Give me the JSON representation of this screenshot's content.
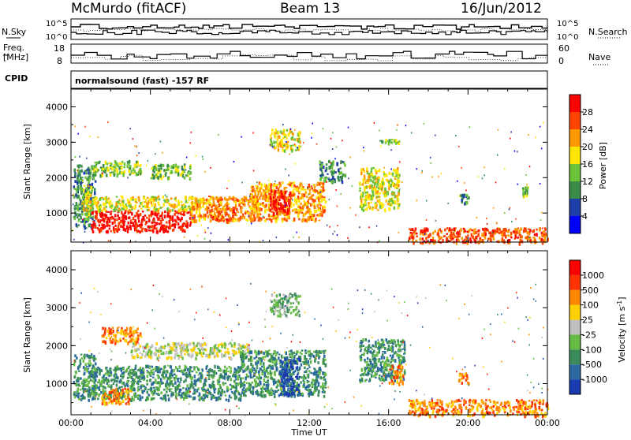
{
  "header": {
    "station": "McMurdo (fitACF)",
    "beam": "Beam 13",
    "date": "16/Jun/2012",
    "cpid_label": "CPID",
    "cpid_text": "normalsound (fast) -157 RF"
  },
  "status_panels": {
    "nsky": {
      "label": "N.Sky",
      "ticks": [
        "10^5",
        "10^0"
      ]
    },
    "nsearch": {
      "label": "N.Search",
      "ticks": [
        "10^5",
        "10^0"
      ]
    },
    "freq": {
      "label_line1": "Freq.",
      "label_line2": "[MHz]",
      "ticks": [
        "18",
        "8"
      ]
    },
    "nave": {
      "label": "Nave",
      "ticks": [
        "60",
        "0"
      ]
    }
  },
  "chart_data": [
    {
      "type": "heatmap",
      "title": "",
      "xlabel": "",
      "ylabel": "Slant Range [km]",
      "xlim": [
        0,
        24
      ],
      "ylim": [
        180,
        4500
      ],
      "yticks": [
        "1000",
        "2000",
        "3000",
        "4000"
      ],
      "colorbar": {
        "label": "Power [dB]",
        "ticks": [
          "28",
          "24",
          "20",
          "16",
          "12",
          "8",
          "4"
        ],
        "colors": [
          "#0000ff",
          "#1e3ea8",
          "#3a8c4a",
          "#6cc33a",
          "#ffe600",
          "#ff9900",
          "#ff4400",
          "#ff0000"
        ]
      },
      "regions": [
        {
          "t0": 0.1,
          "t1": 1.2,
          "r0": 600,
          "r1": 2400,
          "level": 2
        },
        {
          "t0": 0.5,
          "t1": 1.0,
          "r0": 900,
          "r1": 1800,
          "level": 4
        },
        {
          "t0": 1.0,
          "t1": 6.0,
          "r0": 500,
          "r1": 1100,
          "level": 7
        },
        {
          "t0": 1.0,
          "t1": 6.5,
          "r0": 1100,
          "r1": 1500,
          "level": 4
        },
        {
          "t0": 6.0,
          "t1": 9.5,
          "r0": 800,
          "r1": 1500,
          "level": 5
        },
        {
          "t0": 7.0,
          "t1": 8.2,
          "r0": 800,
          "r1": 1200,
          "level": 6
        },
        {
          "t0": 9.0,
          "t1": 12.8,
          "r0": 800,
          "r1": 1900,
          "level": 5
        },
        {
          "t0": 10.0,
          "t1": 11.0,
          "r0": 1000,
          "r1": 1700,
          "level": 7
        },
        {
          "t0": 1.0,
          "t1": 3.5,
          "r0": 2100,
          "r1": 2500,
          "level": 3
        },
        {
          "t0": 4.0,
          "t1": 6.0,
          "r0": 2000,
          "r1": 2400,
          "level": 3
        },
        {
          "t0": 10.0,
          "t1": 11.5,
          "r0": 2800,
          "r1": 3400,
          "level": 4
        },
        {
          "t0": 12.5,
          "t1": 13.8,
          "r0": 1900,
          "r1": 2500,
          "level": 2
        },
        {
          "t0": 14.5,
          "t1": 16.5,
          "r0": 1100,
          "r1": 2300,
          "level": 4
        },
        {
          "t0": 15.5,
          "t1": 16.5,
          "r0": 3000,
          "r1": 3100,
          "level": 3
        },
        {
          "t0": 19.5,
          "t1": 20.0,
          "r0": 1300,
          "r1": 1600,
          "level": 2
        },
        {
          "t0": 22.7,
          "t1": 23.0,
          "r0": 1500,
          "r1": 1800,
          "level": 3
        },
        {
          "t0": 17.0,
          "t1": 24.0,
          "r0": 180,
          "r1": 600,
          "level": 6
        }
      ]
    },
    {
      "type": "heatmap",
      "title": "",
      "xlabel": "Time UT",
      "ylabel": "Slant Range [km]",
      "xlim": [
        0,
        24
      ],
      "ylim": [
        180,
        4500
      ],
      "xticks": [
        "00:00",
        "04:00",
        "08:00",
        "12:00",
        "16:00",
        "20:00",
        "00:00"
      ],
      "yticks": [
        "1000",
        "2000",
        "3000",
        "4000"
      ],
      "colorbar": {
        "label": "Velocity [m s^-1]",
        "ticks": [
          "1000",
          "500",
          "100",
          "25",
          "-25",
          "-100",
          "-500",
          "-1000"
        ],
        "colors": [
          "#1a3cb0",
          "#2a6aa0",
          "#3a8c5a",
          "#66bb44",
          "#c0c0c0",
          "#ffd000",
          "#ff8800",
          "#ff3300",
          "#ff0000"
        ]
      },
      "regions": [
        {
          "t0": 0.1,
          "t1": 1.2,
          "r0": 600,
          "r1": 1800,
          "level": 2
        },
        {
          "t0": 1.0,
          "t1": 8.5,
          "r0": 600,
          "r1": 1500,
          "level": 2
        },
        {
          "t0": 1.5,
          "t1": 3.0,
          "r0": 500,
          "r1": 900,
          "level": 6
        },
        {
          "t0": 3.0,
          "t1": 9.0,
          "r0": 1700,
          "r1": 2100,
          "level": 4
        },
        {
          "t0": 1.5,
          "t1": 3.5,
          "r0": 2100,
          "r1": 2500,
          "level": 6
        },
        {
          "t0": 8.5,
          "t1": 12.8,
          "r0": 700,
          "r1": 1900,
          "level": 2
        },
        {
          "t0": 10.5,
          "t1": 11.5,
          "r0": 700,
          "r1": 1700,
          "level": 0
        },
        {
          "t0": 10.0,
          "t1": 11.5,
          "r0": 2800,
          "r1": 3400,
          "level": 3
        },
        {
          "t0": 14.5,
          "t1": 16.8,
          "r0": 1100,
          "r1": 2200,
          "level": 2
        },
        {
          "t0": 16.0,
          "t1": 16.7,
          "r0": 1000,
          "r1": 1500,
          "level": 6
        },
        {
          "t0": 19.5,
          "t1": 20.0,
          "r0": 1000,
          "r1": 1300,
          "level": 6
        },
        {
          "t0": 17.0,
          "t1": 24.0,
          "r0": 180,
          "r1": 600,
          "level": 6
        }
      ]
    }
  ]
}
